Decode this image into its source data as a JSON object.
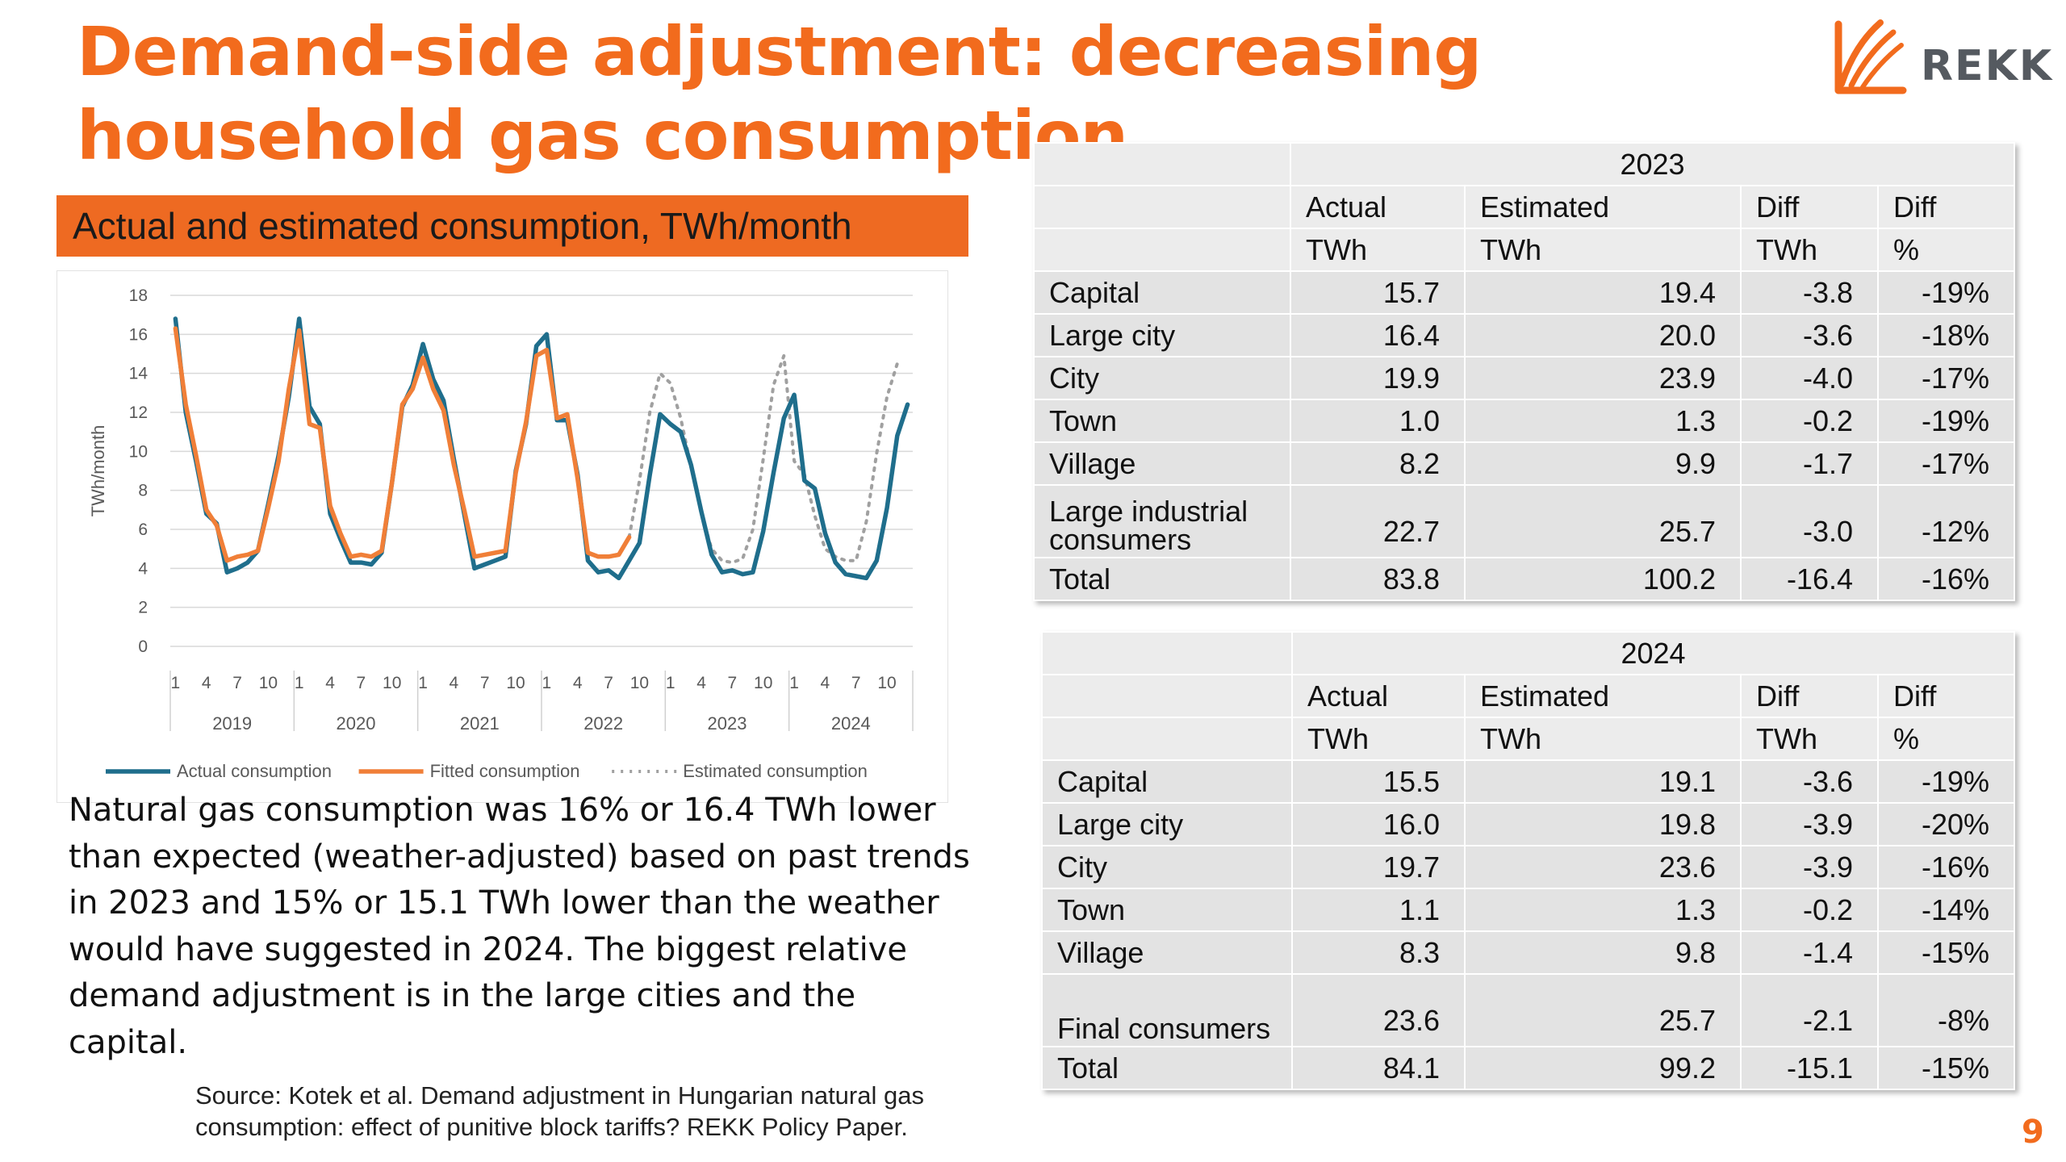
{
  "title": "Demand-side adjustment: decreasing household gas consumption",
  "logo": {
    "text": "REKK",
    "icon": "rekk-logo-icon"
  },
  "chart_banner": "Actual and estimated consumption, TWh/month",
  "chart_data": {
    "type": "line",
    "ylabel": "TWh/month",
    "xlabel": "",
    "ylim": [
      0,
      18
    ],
    "yticks": [
      "0",
      "2",
      "4",
      "6",
      "8",
      "10",
      "12",
      "14",
      "16",
      "18"
    ],
    "month_ticks": [
      "1",
      "4",
      "7",
      "10"
    ],
    "years": [
      "2019",
      "2020",
      "2021",
      "2022",
      "2023",
      "2024"
    ],
    "grid": true,
    "legend_position": "bottom",
    "series": [
      {
        "name": "Actual consumption",
        "color": "#1F6E8C",
        "style": "solid",
        "start_index": 0,
        "values": [
          16.8,
          12.0,
          9.5,
          6.8,
          6.3,
          3.8,
          4.0,
          4.3,
          4.9,
          7.3,
          9.8,
          12.8,
          16.8,
          12.3,
          11.4,
          6.8,
          5.5,
          4.3,
          4.3,
          4.2,
          4.8,
          8.4,
          12.3,
          13.4,
          15.5,
          13.7,
          12.6,
          9.6,
          6.8,
          4.0,
          4.2,
          4.4,
          4.6,
          9.0,
          11.4,
          15.4,
          16.0,
          11.6,
          11.6,
          8.8,
          4.4,
          3.8,
          3.9,
          3.5,
          4.4,
          5.3,
          8.8,
          11.9,
          11.4,
          11.0,
          9.3,
          6.9,
          4.7,
          3.8,
          3.9,
          3.7,
          3.8,
          5.9,
          8.9,
          11.7,
          12.9,
          8.5,
          8.1,
          5.8,
          4.3,
          3.7,
          3.6,
          3.5,
          4.4,
          7.1,
          10.8,
          12.4
        ]
      },
      {
        "name": "Fitted consumption",
        "color": "#F07F38",
        "style": "solid",
        "start_index": 0,
        "values": [
          16.3,
          12.4,
          9.8,
          7.0,
          6.2,
          4.4,
          4.6,
          4.7,
          4.9,
          7.1,
          9.5,
          13.2,
          16.2,
          11.4,
          11.2,
          7.2,
          5.8,
          4.6,
          4.7,
          4.6,
          4.9,
          8.4,
          12.4,
          13.2,
          14.8,
          13.2,
          12.1,
          9.3,
          7.0,
          4.6,
          4.7,
          4.8,
          4.9,
          8.9,
          11.5,
          14.9,
          15.2,
          11.7,
          11.9,
          8.6,
          4.8,
          4.6,
          4.6,
          4.7,
          5.6
        ]
      },
      {
        "name": "Estimated consumption",
        "color": "#a0a0a0",
        "style": "dotted",
        "start_index": 44,
        "values": [
          5.6,
          8.5,
          12.0,
          14.0,
          13.5,
          11.7,
          9.2,
          6.8,
          5.0,
          4.4,
          4.3,
          4.5,
          6.0,
          9.6,
          13.4,
          14.9,
          9.5,
          8.8,
          6.7,
          5.0,
          4.6,
          4.4,
          4.4,
          6.4,
          9.9,
          12.8,
          14.5
        ]
      }
    ]
  },
  "body_text": "Natural gas consumption was 16% or 16.4 TWh lower than expected (weather-adjusted) based on past trends in 2023 and 15% or 15.1 TWh lower than the weather would have suggested in 2024. The biggest relative demand adjustment is in the large cities and the capital.",
  "source": "Source: Kotek et al. Demand adjustment in Hungarian natural gas consumption: effect of punitive block tariffs? REKK Policy Paper.",
  "page_number": "9",
  "tables": [
    {
      "year": "2023",
      "headers": [
        "Actual",
        "Estimated",
        "Diff",
        "Diff"
      ],
      "units": [
        "TWh",
        "TWh",
        "TWh",
        "%"
      ],
      "rows": [
        {
          "label": "Capital",
          "actual": "15.7",
          "estimated": "19.4",
          "diff": "-3.8",
          "pct": "-19%"
        },
        {
          "label": "Large city",
          "actual": "16.4",
          "estimated": "20.0",
          "diff": "-3.6",
          "pct": "-18%"
        },
        {
          "label": "City",
          "actual": "19.9",
          "estimated": "23.9",
          "diff": "-4.0",
          "pct": "-17%"
        },
        {
          "label": "Town",
          "actual": "1.0",
          "estimated": "1.3",
          "diff": "-0.2",
          "pct": "-19%"
        },
        {
          "label": "Village",
          "actual": "8.2",
          "estimated": "9.9",
          "diff": "-1.7",
          "pct": "-17%"
        },
        {
          "label": "Large industrial consumers",
          "actual": "22.7",
          "estimated": "25.7",
          "diff": "-3.0",
          "pct": "-12%"
        },
        {
          "label": "Total",
          "actual": "83.8",
          "estimated": "100.2",
          "diff": "-16.4",
          "pct": "-16%"
        }
      ]
    },
    {
      "year": "2024",
      "headers": [
        "Actual",
        "Estimated",
        "Diff",
        "Diff"
      ],
      "units": [
        "TWh",
        "TWh",
        "TWh",
        "%"
      ],
      "rows": [
        {
          "label": "Capital",
          "actual": "15.5",
          "estimated": "19.1",
          "diff": "-3.6",
          "pct": "-19%"
        },
        {
          "label": "Large city",
          "actual": "16.0",
          "estimated": "19.8",
          "diff": "-3.9",
          "pct": "-20%"
        },
        {
          "label": "City",
          "actual": "19.7",
          "estimated": "23.6",
          "diff": "-3.9",
          "pct": "-16%"
        },
        {
          "label": "Town",
          "actual": "1.1",
          "estimated": "1.3",
          "diff": "-0.2",
          "pct": "-14%"
        },
        {
          "label": "Village",
          "actual": "8.3",
          "estimated": "9.8",
          "diff": "-1.4",
          "pct": "-15%"
        },
        {
          "label": "Final consumers",
          "actual": "23.6",
          "estimated": "25.7",
          "diff": "-2.1",
          "pct": "-8%"
        },
        {
          "label": "Total",
          "actual": "84.1",
          "estimated": "99.2",
          "diff": "-15.1",
          "pct": "-15%"
        }
      ]
    }
  ]
}
